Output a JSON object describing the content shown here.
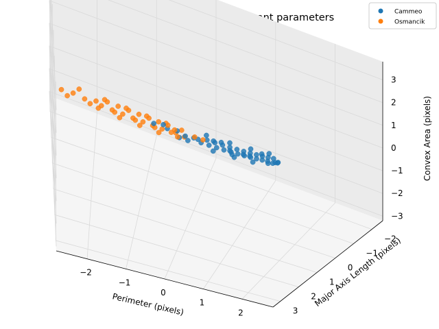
{
  "chart_data": {
    "type": "scatter",
    "projection": "3d",
    "title": "Binary classification by 3 relevant parameters",
    "xlabel": "Perimeter (pixels)",
    "ylabel": "Major Axis Length (pixels)",
    "zlabel": "Convex Area (pixels)",
    "xlim": [
      -2.8,
      2.8
    ],
    "ylim": [
      -2.6,
      3.4
    ],
    "zlim": [
      -3.2,
      3.8
    ],
    "xticks": [
      "−2",
      "−1",
      "0",
      "1",
      "2"
    ],
    "xtick_values": [
      -2,
      -1,
      0,
      1,
      2
    ],
    "yticks": [
      "−2",
      "−1",
      "0",
      "1",
      "2",
      "3"
    ],
    "ytick_values": [
      -2,
      -1,
      0,
      1,
      2,
      3
    ],
    "zticks": [
      "−3",
      "−2",
      "−1",
      "0",
      "1",
      "2",
      "3"
    ],
    "ztick_values": [
      -3,
      -2,
      -1,
      0,
      1,
      2,
      3
    ],
    "grid": true,
    "legend_position": "top-right",
    "series": [
      {
        "name": "Cammeo",
        "color": "#1f77b4",
        "points": [
          [
            -0.9,
            -1.0,
            -1.0
          ],
          [
            -0.6,
            -0.6,
            -0.6
          ],
          [
            -0.4,
            -0.5,
            -0.45
          ],
          [
            -0.2,
            -0.2,
            -0.25
          ],
          [
            0.0,
            0.0,
            0.0
          ],
          [
            0.1,
            0.1,
            0.1
          ],
          [
            0.2,
            0.3,
            0.2
          ],
          [
            0.3,
            0.2,
            0.3
          ],
          [
            0.4,
            0.5,
            0.4
          ],
          [
            0.5,
            0.4,
            0.5
          ],
          [
            0.6,
            0.7,
            0.6
          ],
          [
            0.7,
            0.6,
            0.7
          ],
          [
            0.8,
            0.9,
            0.8
          ],
          [
            0.9,
            0.8,
            0.9
          ],
          [
            1.0,
            1.1,
            1.0
          ],
          [
            1.1,
            1.0,
            1.1
          ],
          [
            1.2,
            1.3,
            1.2
          ],
          [
            1.3,
            1.2,
            1.3
          ],
          [
            1.4,
            1.5,
            1.4
          ],
          [
            1.5,
            1.4,
            1.5
          ],
          [
            1.6,
            1.7,
            1.6
          ],
          [
            1.7,
            1.6,
            1.7
          ],
          [
            1.8,
            1.9,
            1.8
          ],
          [
            1.9,
            1.8,
            1.9
          ],
          [
            2.0,
            2.1,
            2.0
          ],
          [
            2.1,
            2.0,
            2.1
          ],
          [
            2.2,
            2.3,
            2.2
          ],
          [
            2.3,
            2.2,
            2.3
          ],
          [
            2.5,
            2.6,
            2.5
          ],
          [
            2.7,
            2.9,
            2.8
          ],
          [
            -0.3,
            -0.1,
            -0.3
          ],
          [
            0.25,
            0.0,
            0.3
          ],
          [
            0.55,
            0.8,
            0.5
          ],
          [
            0.85,
            0.6,
            0.9
          ],
          [
            1.15,
            1.4,
            1.1
          ],
          [
            1.45,
            1.2,
            1.5
          ],
          [
            1.75,
            2.0,
            1.7
          ],
          [
            2.05,
            1.8,
            2.1
          ],
          [
            2.4,
            2.5,
            2.35
          ],
          [
            2.6,
            2.7,
            2.6
          ],
          [
            -0.7,
            -0.8,
            -0.7
          ],
          [
            -0.1,
            0.1,
            -0.1
          ],
          [
            0.45,
            0.3,
            0.45
          ],
          [
            0.95,
            1.0,
            0.95
          ],
          [
            1.35,
            1.4,
            1.35
          ],
          [
            1.85,
            1.7,
            1.9
          ],
          [
            2.25,
            2.4,
            2.2
          ],
          [
            0.65,
            0.5,
            0.7
          ],
          [
            1.05,
            1.2,
            1.0
          ],
          [
            1.55,
            1.6,
            1.55
          ]
        ]
      },
      {
        "name": "Osmancik",
        "color": "#ff7f0e",
        "points": [
          [
            -2.6,
            -2.4,
            -2.5
          ],
          [
            -2.4,
            -2.3,
            -2.35
          ],
          [
            -2.2,
            -2.1,
            -2.2
          ],
          [
            -2.0,
            -2.0,
            -2.0
          ],
          [
            -1.9,
            -1.8,
            -1.9
          ],
          [
            -1.8,
            -1.9,
            -1.75
          ],
          [
            -1.7,
            -1.6,
            -1.7
          ],
          [
            -1.6,
            -1.7,
            -1.55
          ],
          [
            -1.5,
            -1.4,
            -1.5
          ],
          [
            -1.4,
            -1.5,
            -1.35
          ],
          [
            -1.3,
            -1.2,
            -1.3
          ],
          [
            -1.2,
            -1.3,
            -1.15
          ],
          [
            -1.1,
            -1.0,
            -1.1
          ],
          [
            -1.0,
            -1.1,
            -0.95
          ],
          [
            -0.9,
            -0.8,
            -0.9
          ],
          [
            -0.8,
            -0.9,
            -0.75
          ],
          [
            -0.7,
            -0.6,
            -0.7
          ],
          [
            -0.6,
            -0.7,
            -0.55
          ],
          [
            -0.5,
            -0.4,
            -0.5
          ],
          [
            -0.4,
            -0.3,
            -0.35
          ],
          [
            -0.3,
            -0.4,
            -0.25
          ],
          [
            -0.2,
            -0.1,
            -0.2
          ],
          [
            -2.3,
            -2.5,
            -2.3
          ],
          [
            -2.1,
            -1.9,
            -2.1
          ],
          [
            -1.85,
            -2.0,
            -1.8
          ],
          [
            -1.65,
            -1.5,
            -1.65
          ],
          [
            -1.45,
            -1.6,
            -1.4
          ],
          [
            -1.25,
            -1.1,
            -1.25
          ],
          [
            -1.05,
            -1.2,
            -1.0
          ],
          [
            -0.85,
            -0.7,
            -0.85
          ],
          [
            -0.65,
            -0.8,
            -0.6
          ],
          [
            -0.45,
            -0.5,
            -0.45
          ],
          [
            -2.5,
            -2.2,
            -2.45
          ],
          [
            -1.95,
            -1.7,
            -1.95
          ],
          [
            -1.55,
            -1.3,
            -1.6
          ],
          [
            -1.15,
            -0.9,
            -1.2
          ],
          [
            -0.75,
            -0.5,
            -0.8
          ],
          [
            -0.35,
            -0.2,
            -0.4
          ],
          [
            0.0,
            -0.1,
            -0.05
          ],
          [
            0.2,
            0.1,
            0.15
          ]
        ]
      }
    ]
  }
}
